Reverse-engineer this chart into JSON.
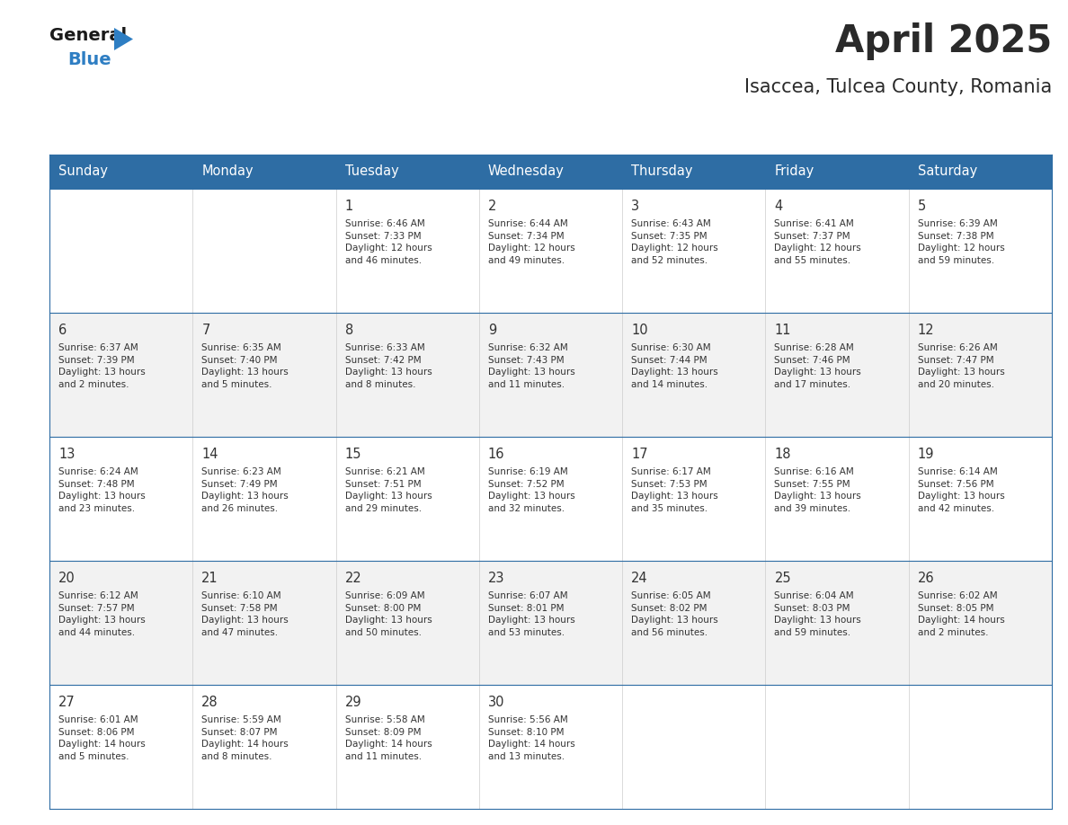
{
  "title": "April 2025",
  "subtitle": "Isaccea, Tulcea County, Romania",
  "days_of_week": [
    "Sunday",
    "Monday",
    "Tuesday",
    "Wednesday",
    "Thursday",
    "Friday",
    "Saturday"
  ],
  "header_bg": "#2E6DA4",
  "header_text": "#FFFFFF",
  "row_bg_light": "#F2F2F2",
  "row_bg_white": "#FFFFFF",
  "cell_text": "#333333",
  "day_number_color": "#333333",
  "border_color": "#2E6DA4",
  "title_color": "#2a2a2a",
  "subtitle_color": "#2a2a2a",
  "logo_general_color": "#1a1a1a",
  "logo_blue_color": "#2E7EC3",
  "logo_triangle_color": "#2E7EC3",
  "calendar": [
    [
      {
        "day": null,
        "info": ""
      },
      {
        "day": null,
        "info": ""
      },
      {
        "day": 1,
        "info": "Sunrise: 6:46 AM\nSunset: 7:33 PM\nDaylight: 12 hours\nand 46 minutes."
      },
      {
        "day": 2,
        "info": "Sunrise: 6:44 AM\nSunset: 7:34 PM\nDaylight: 12 hours\nand 49 minutes."
      },
      {
        "day": 3,
        "info": "Sunrise: 6:43 AM\nSunset: 7:35 PM\nDaylight: 12 hours\nand 52 minutes."
      },
      {
        "day": 4,
        "info": "Sunrise: 6:41 AM\nSunset: 7:37 PM\nDaylight: 12 hours\nand 55 minutes."
      },
      {
        "day": 5,
        "info": "Sunrise: 6:39 AM\nSunset: 7:38 PM\nDaylight: 12 hours\nand 59 minutes."
      }
    ],
    [
      {
        "day": 6,
        "info": "Sunrise: 6:37 AM\nSunset: 7:39 PM\nDaylight: 13 hours\nand 2 minutes."
      },
      {
        "day": 7,
        "info": "Sunrise: 6:35 AM\nSunset: 7:40 PM\nDaylight: 13 hours\nand 5 minutes."
      },
      {
        "day": 8,
        "info": "Sunrise: 6:33 AM\nSunset: 7:42 PM\nDaylight: 13 hours\nand 8 minutes."
      },
      {
        "day": 9,
        "info": "Sunrise: 6:32 AM\nSunset: 7:43 PM\nDaylight: 13 hours\nand 11 minutes."
      },
      {
        "day": 10,
        "info": "Sunrise: 6:30 AM\nSunset: 7:44 PM\nDaylight: 13 hours\nand 14 minutes."
      },
      {
        "day": 11,
        "info": "Sunrise: 6:28 AM\nSunset: 7:46 PM\nDaylight: 13 hours\nand 17 minutes."
      },
      {
        "day": 12,
        "info": "Sunrise: 6:26 AM\nSunset: 7:47 PM\nDaylight: 13 hours\nand 20 minutes."
      }
    ],
    [
      {
        "day": 13,
        "info": "Sunrise: 6:24 AM\nSunset: 7:48 PM\nDaylight: 13 hours\nand 23 minutes."
      },
      {
        "day": 14,
        "info": "Sunrise: 6:23 AM\nSunset: 7:49 PM\nDaylight: 13 hours\nand 26 minutes."
      },
      {
        "day": 15,
        "info": "Sunrise: 6:21 AM\nSunset: 7:51 PM\nDaylight: 13 hours\nand 29 minutes."
      },
      {
        "day": 16,
        "info": "Sunrise: 6:19 AM\nSunset: 7:52 PM\nDaylight: 13 hours\nand 32 minutes."
      },
      {
        "day": 17,
        "info": "Sunrise: 6:17 AM\nSunset: 7:53 PM\nDaylight: 13 hours\nand 35 minutes."
      },
      {
        "day": 18,
        "info": "Sunrise: 6:16 AM\nSunset: 7:55 PM\nDaylight: 13 hours\nand 39 minutes."
      },
      {
        "day": 19,
        "info": "Sunrise: 6:14 AM\nSunset: 7:56 PM\nDaylight: 13 hours\nand 42 minutes."
      }
    ],
    [
      {
        "day": 20,
        "info": "Sunrise: 6:12 AM\nSunset: 7:57 PM\nDaylight: 13 hours\nand 44 minutes."
      },
      {
        "day": 21,
        "info": "Sunrise: 6:10 AM\nSunset: 7:58 PM\nDaylight: 13 hours\nand 47 minutes."
      },
      {
        "day": 22,
        "info": "Sunrise: 6:09 AM\nSunset: 8:00 PM\nDaylight: 13 hours\nand 50 minutes."
      },
      {
        "day": 23,
        "info": "Sunrise: 6:07 AM\nSunset: 8:01 PM\nDaylight: 13 hours\nand 53 minutes."
      },
      {
        "day": 24,
        "info": "Sunrise: 6:05 AM\nSunset: 8:02 PM\nDaylight: 13 hours\nand 56 minutes."
      },
      {
        "day": 25,
        "info": "Sunrise: 6:04 AM\nSunset: 8:03 PM\nDaylight: 13 hours\nand 59 minutes."
      },
      {
        "day": 26,
        "info": "Sunrise: 6:02 AM\nSunset: 8:05 PM\nDaylight: 14 hours\nand 2 minutes."
      }
    ],
    [
      {
        "day": 27,
        "info": "Sunrise: 6:01 AM\nSunset: 8:06 PM\nDaylight: 14 hours\nand 5 minutes."
      },
      {
        "day": 28,
        "info": "Sunrise: 5:59 AM\nSunset: 8:07 PM\nDaylight: 14 hours\nand 8 minutes."
      },
      {
        "day": 29,
        "info": "Sunrise: 5:58 AM\nSunset: 8:09 PM\nDaylight: 14 hours\nand 11 minutes."
      },
      {
        "day": 30,
        "info": "Sunrise: 5:56 AM\nSunset: 8:10 PM\nDaylight: 14 hours\nand 13 minutes."
      },
      {
        "day": null,
        "info": ""
      },
      {
        "day": null,
        "info": ""
      },
      {
        "day": null,
        "info": ""
      }
    ]
  ]
}
